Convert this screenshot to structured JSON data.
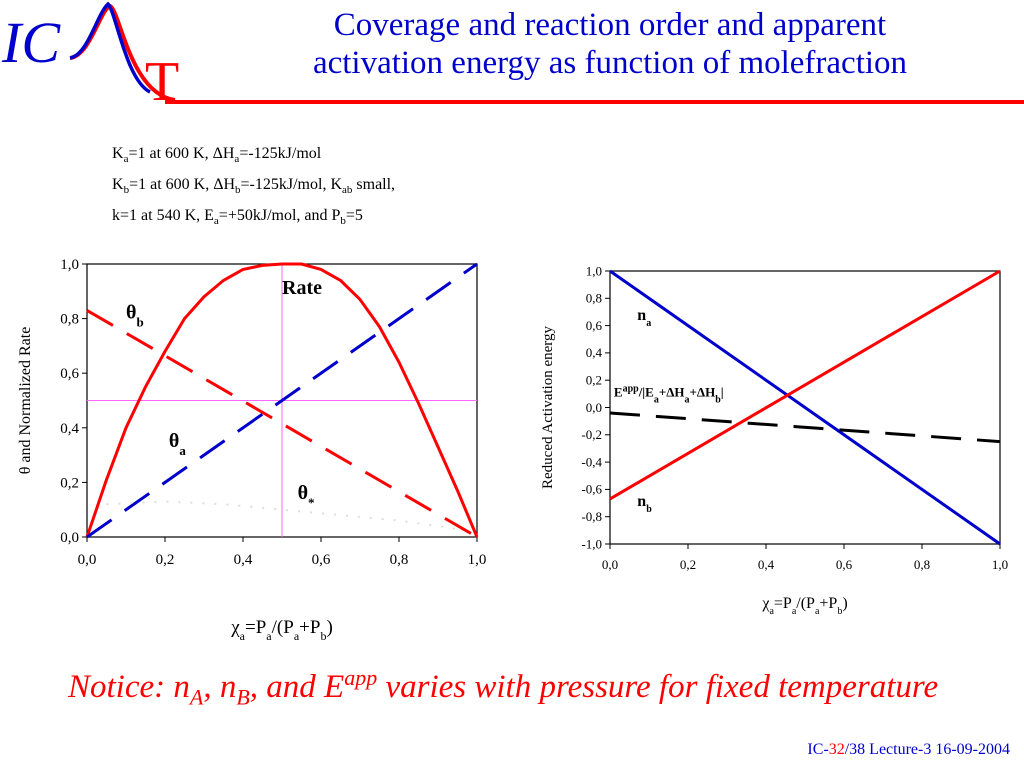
{
  "logo": {
    "text_ic": "IC",
    "text_t": "T"
  },
  "slide": {
    "title_line1": "Coverage and reaction order and apparent",
    "title_line2": "activation energy as function of molefraction"
  },
  "params": [
    [
      [
        "K",
        ""
      ],
      [
        "a",
        "sub"
      ],
      [
        "=1 at 600 K, ΔH",
        ""
      ],
      [
        "a",
        "sub"
      ],
      [
        "=-125kJ/mol",
        ""
      ]
    ],
    [
      [
        "K",
        ""
      ],
      [
        "b",
        "sub"
      ],
      [
        "=1 at 600 K, ΔH",
        ""
      ],
      [
        "b",
        "sub"
      ],
      [
        "=-125kJ/mol, K",
        ""
      ],
      [
        "ab",
        "sub"
      ],
      [
        " small,",
        ""
      ]
    ],
    [
      [
        "k=1 at 540 K, E",
        ""
      ],
      [
        "a",
        "sub"
      ],
      [
        "=+50kJ/mol, and P",
        ""
      ],
      [
        "b",
        "sub"
      ],
      [
        "=5",
        ""
      ]
    ]
  ],
  "chart_data": [
    {
      "type": "line",
      "ylabel": "θ and Normalized Rate",
      "xlabel": [
        [
          "χ",
          ""
        ],
        [
          "a",
          "sub"
        ],
        [
          "=P",
          ""
        ],
        [
          "a",
          "sub"
        ],
        [
          "/(P",
          ""
        ],
        [
          "a",
          "sub"
        ],
        [
          "+P",
          ""
        ],
        [
          "b",
          "sub"
        ],
        [
          ")",
          ""
        ]
      ],
      "xlim": [
        0,
        1
      ],
      "ylim": [
        0,
        1
      ],
      "x_ticks": [
        "0,0",
        "0,2",
        "0,4",
        "0,6",
        "0,8",
        "1,0"
      ],
      "y_ticks": [
        "0,0",
        "0,2",
        "0,4",
        "0,6",
        "0,8",
        "1,0"
      ],
      "guide_lines": {
        "x": 0.5,
        "y": 0.5,
        "color": "#ff66ff"
      },
      "series": [
        {
          "name": "Rate",
          "color": "#ff0000",
          "style": "solid",
          "x": [
            0,
            0.05,
            0.1,
            0.15,
            0.2,
            0.25,
            0.3,
            0.35,
            0.4,
            0.45,
            0.5,
            0.55,
            0.6,
            0.65,
            0.7,
            0.75,
            0.8,
            0.85,
            0.9,
            0.95,
            1.0
          ],
          "y": [
            0,
            0.21,
            0.4,
            0.55,
            0.68,
            0.8,
            0.88,
            0.94,
            0.98,
            0.995,
            1.0,
            1.0,
            0.98,
            0.94,
            0.87,
            0.77,
            0.64,
            0.49,
            0.33,
            0.17,
            0
          ]
        },
        {
          "name": "θb",
          "color": "#ff0000",
          "style": "dashed",
          "x": [
            0,
            1
          ],
          "y": [
            0.83,
            0
          ]
        },
        {
          "name": "θa",
          "color": "#0000cc",
          "style": "dashed",
          "x": [
            0,
            1
          ],
          "y": [
            0,
            1
          ]
        },
        {
          "name": "θ*",
          "color": "#dddddd",
          "style": "dotted",
          "x": [
            0.05,
            0.2,
            0.35,
            0.5,
            0.65,
            0.8,
            0.95
          ],
          "y": [
            0.12,
            0.13,
            0.12,
            0.1,
            0.08,
            0.06,
            0.03
          ]
        }
      ],
      "annotations": [
        {
          "text": "Rate",
          "sub": "",
          "x": 0.5,
          "y": 0.89
        },
        {
          "text": "θ",
          "sub": "b",
          "x": 0.1,
          "y": 0.8
        },
        {
          "text": "θ",
          "sub": "a",
          "x": 0.21,
          "y": 0.33
        },
        {
          "text": "θ",
          "sub": "*",
          "x": 0.54,
          "y": 0.14
        }
      ]
    },
    {
      "type": "line",
      "ylabel": "Reduced  Activation energy",
      "xlabel": [
        [
          "χ",
          ""
        ],
        [
          "a",
          "sub"
        ],
        [
          "=P",
          ""
        ],
        [
          "a",
          "sub"
        ],
        [
          "/(P",
          ""
        ],
        [
          "a",
          "sub"
        ],
        [
          "+P",
          ""
        ],
        [
          "b",
          "sub"
        ],
        [
          ")",
          ""
        ]
      ],
      "xlim": [
        0,
        1
      ],
      "ylim": [
        -1,
        1
      ],
      "x_ticks": [
        "0,0",
        "0,2",
        "0,4",
        "0,6",
        "0,8",
        "1,0"
      ],
      "y_ticks": [
        "-1,0",
        "-0,8",
        "-0,6",
        "-0,4",
        "-0,2",
        "0,0",
        "0,2",
        "0,4",
        "0,6",
        "0,8",
        "1,0"
      ],
      "series": [
        {
          "name": "na",
          "color": "#0000cc",
          "style": "solid",
          "x": [
            0,
            1
          ],
          "y": [
            1.0,
            -1.0
          ]
        },
        {
          "name": "nb",
          "color": "#ff0000",
          "style": "solid",
          "x": [
            0,
            1
          ],
          "y": [
            -0.67,
            1.0
          ]
        },
        {
          "name": "Eapp",
          "color": "#000000",
          "style": "dashed",
          "x": [
            0,
            1
          ],
          "y": [
            -0.04,
            -0.25
          ]
        }
      ],
      "annotations": [
        {
          "parts": [
            [
              "n",
              ""
            ],
            [
              "a",
              "sub"
            ]
          ],
          "x": 0.07,
          "y": 0.64
        },
        {
          "parts": [
            [
              "n",
              ""
            ],
            [
              "b",
              "sub"
            ]
          ],
          "x": 0.07,
          "y": -0.72
        },
        {
          "parts": [
            [
              "E",
              ""
            ],
            [
              "app",
              "sup"
            ],
            [
              "/|E",
              ""
            ],
            [
              "a",
              "sub"
            ],
            [
              "+ΔH",
              ""
            ],
            [
              "a",
              "sub"
            ],
            [
              "+ΔH",
              ""
            ],
            [
              "b",
              "sub"
            ],
            [
              "|",
              ""
            ]
          ],
          "x": 0.01,
          "y": 0.08
        }
      ]
    }
  ],
  "notice": [
    [
      "Notice: n",
      ""
    ],
    [
      "A",
      "sub"
    ],
    [
      ", n",
      ""
    ],
    [
      "B",
      "sub"
    ],
    [
      ", and E",
      ""
    ],
    [
      "app",
      "sup"
    ],
    [
      " varies with pressure for fixed temperature",
      ""
    ]
  ],
  "footer": {
    "prefix": "IC-",
    "page": "32",
    "suffix": "/38  Lecture-3 16-09-2004"
  },
  "colors": {
    "title": "#0000cc",
    "accent": "#ff0000",
    "blue_series": "#0000cc"
  }
}
